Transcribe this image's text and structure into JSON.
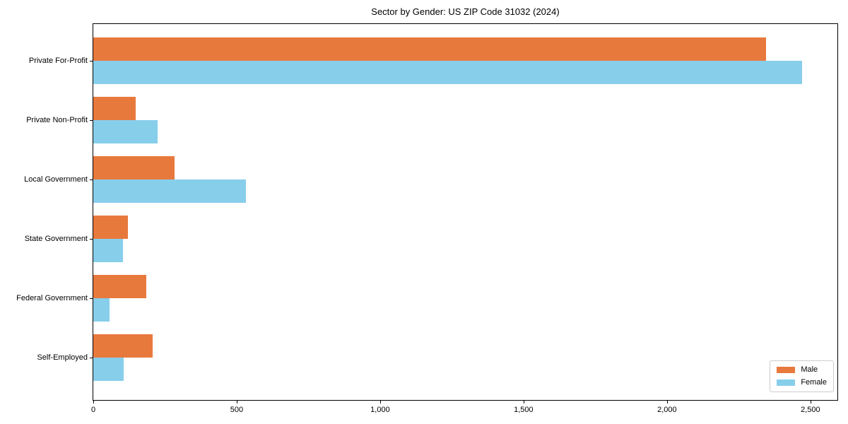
{
  "title": "Sector by Gender: US ZIP Code 31032 (2024)",
  "chart_data": {
    "type": "bar",
    "orientation": "horizontal",
    "title": "Sector by Gender: US ZIP Code 31032 (2024)",
    "xlabel": "",
    "ylabel": "",
    "categories": [
      "Private For-Profit",
      "Private Non-Profit",
      "Local Government",
      "State Government",
      "Federal Government",
      "Self-Employed"
    ],
    "series": [
      {
        "name": "Male",
        "color": "#E8793D",
        "values": [
          2345,
          147,
          284,
          121,
          184,
          207
        ]
      },
      {
        "name": "Female",
        "color": "#87CEEB",
        "values": [
          2470,
          224,
          533,
          103,
          57,
          106
        ]
      }
    ],
    "xlim": [
      0,
      2594
    ],
    "x_ticks": [
      0,
      500,
      1000,
      1500,
      2000,
      2500
    ],
    "x_tick_labels": [
      "0",
      "500",
      "1,000",
      "1,500",
      "2,000",
      "2,500"
    ],
    "grid": false,
    "legend_position": "lower right"
  }
}
